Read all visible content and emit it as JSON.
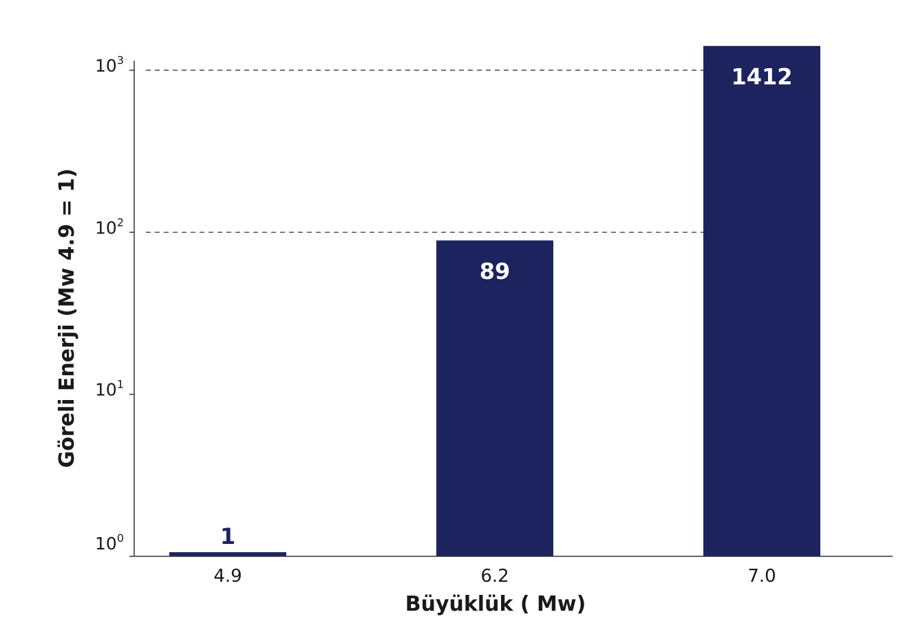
{
  "chart_data": {
    "type": "bar",
    "categories": [
      "4.9",
      "6.2",
      "7.0"
    ],
    "values": [
      1,
      89,
      1412
    ],
    "data_labels": [
      "1",
      "89",
      "1412"
    ],
    "xlabel": "Büyüklük ( Mw)",
    "ylabel": "Göreli Enerji (Mw 4.9 = 1)",
    "y_scale": "log",
    "y_ticks": [
      1,
      10,
      100,
      1000
    ],
    "y_tick_labels": [
      {
        "base": "10",
        "exp": "0"
      },
      {
        "base": "10",
        "exp": "1"
      },
      {
        "base": "10",
        "exp": "2"
      },
      {
        "base": "10",
        "exp": "3"
      }
    ],
    "ylim": [
      1,
      1412
    ],
    "gridlines_at": [
      100,
      1000
    ],
    "grid": "dashed horizontal at 10^2 and 10^3",
    "legend": "none",
    "colors": {
      "bar": "#1c235e",
      "label_inside": "#ffffff",
      "label_outside": "#1c235e"
    }
  }
}
